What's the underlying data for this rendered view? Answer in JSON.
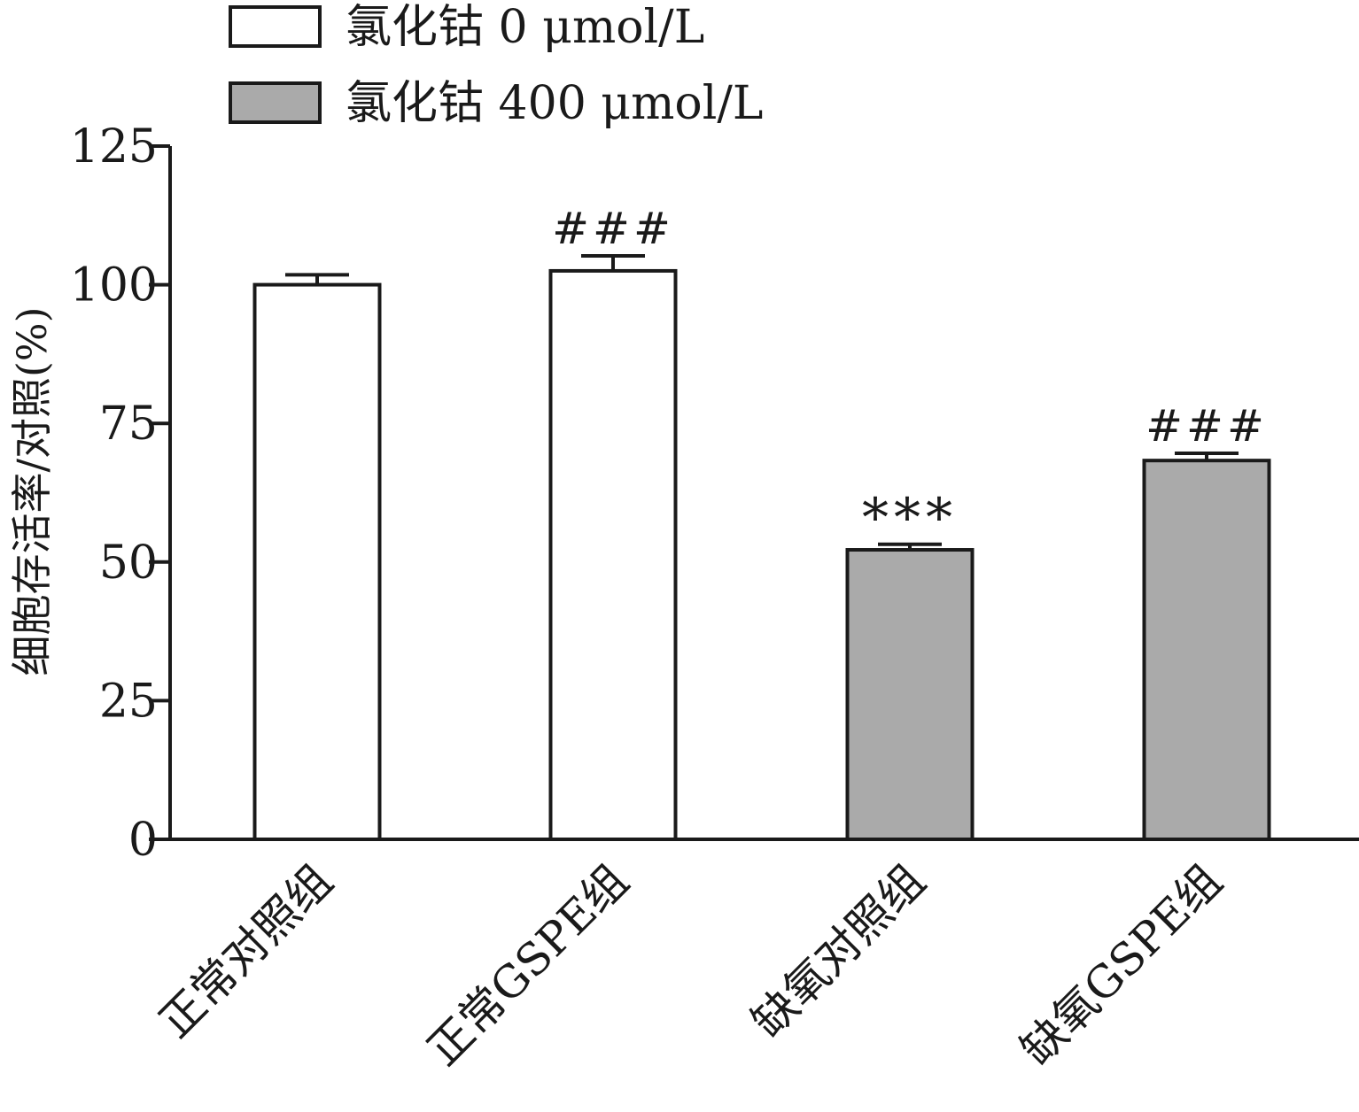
{
  "chart_data": {
    "type": "bar",
    "title": "",
    "xlabel": "",
    "ylabel": "细胞存活率/对照(%)",
    "ylim": [
      0,
      125
    ],
    "yticks": [
      0,
      25,
      50,
      75,
      100,
      125
    ],
    "grid": false,
    "legend_position": "top-left",
    "categories": [
      "正常对照组",
      "正常GSPE组",
      "缺氧对照组",
      "缺氧GSPE组"
    ],
    "values": [
      100.0,
      102.5,
      52.2,
      68.3
    ],
    "errors": [
      1.8,
      2.7,
      1.0,
      1.3
    ],
    "annotations": [
      "",
      "###",
      "***",
      "###"
    ],
    "series_of_bar": [
      0,
      0,
      1,
      1
    ],
    "series": [
      {
        "name": "氯化钴 0 μmol/L",
        "color": "#ffffff"
      },
      {
        "name": "氯化钴 400 μmol/L",
        "color": "#aaaaaa"
      }
    ]
  }
}
